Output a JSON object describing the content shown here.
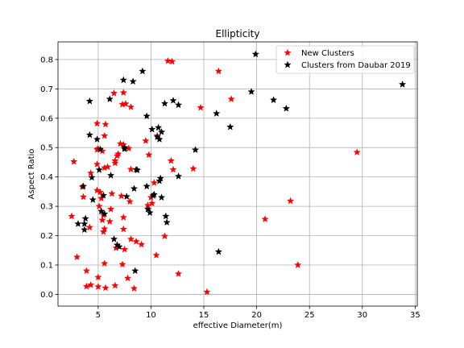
{
  "chart_data": {
    "type": "scatter",
    "title": "Ellipticity",
    "xlabel": "effective Diameter(m)",
    "ylabel": "Aspect Ratio",
    "xlim": [
      1.2,
      35.2
    ],
    "ylim": [
      -0.04,
      0.86
    ],
    "x_ticks": [
      5,
      10,
      15,
      20,
      25,
      30,
      35
    ],
    "y_ticks": [
      0.0,
      0.1,
      0.2,
      0.3,
      0.4,
      0.5,
      0.6,
      0.7,
      0.8
    ],
    "grid": true,
    "legend_position": "top-right",
    "marker": "star",
    "series": [
      {
        "name": "New Clusters",
        "color": "#ff0000",
        "points": [
          [
            11.6,
            0.795
          ],
          [
            12.0,
            0.793
          ],
          [
            16.4,
            0.76
          ],
          [
            6.5,
            0.685
          ],
          [
            7.4,
            0.687
          ],
          [
            17.6,
            0.665
          ],
          [
            7.3,
            0.647
          ],
          [
            7.6,
            0.649
          ],
          [
            8.1,
            0.638
          ],
          [
            14.7,
            0.636
          ],
          [
            4.9,
            0.582
          ],
          [
            5.7,
            0.579
          ],
          [
            5.6,
            0.54
          ],
          [
            10.6,
            0.54
          ],
          [
            9.5,
            0.523
          ],
          [
            7.1,
            0.513
          ],
          [
            7.4,
            0.51
          ],
          [
            5.0,
            0.496
          ],
          [
            4.9,
            0.493
          ],
          [
            7.9,
            0.497
          ],
          [
            5.4,
            0.488
          ],
          [
            6.9,
            0.478
          ],
          [
            6.8,
            0.472
          ],
          [
            9.8,
            0.475
          ],
          [
            29.5,
            0.484
          ],
          [
            6.6,
            0.455
          ],
          [
            11.9,
            0.455
          ],
          [
            6.6,
            0.447
          ],
          [
            2.7,
            0.452
          ],
          [
            4.9,
            0.443
          ],
          [
            5.6,
            0.431
          ],
          [
            5.9,
            0.434
          ],
          [
            8.1,
            0.426
          ],
          [
            12.1,
            0.425
          ],
          [
            14.0,
            0.428
          ],
          [
            4.3,
            0.413
          ],
          [
            10.3,
            0.38
          ],
          [
            3.5,
            0.366
          ],
          [
            6.3,
            0.343
          ],
          [
            4.9,
            0.354
          ],
          [
            5.2,
            0.348
          ],
          [
            7.2,
            0.335
          ],
          [
            3.6,
            0.332
          ],
          [
            5.3,
            0.327
          ],
          [
            10.0,
            0.33
          ],
          [
            10.1,
            0.31
          ],
          [
            9.7,
            0.303
          ],
          [
            8.0,
            0.316
          ],
          [
            23.2,
            0.318
          ],
          [
            6.2,
            0.29
          ],
          [
            5.1,
            0.3
          ],
          [
            5.5,
            0.27
          ],
          [
            7.4,
            0.262
          ],
          [
            2.5,
            0.266
          ],
          [
            20.8,
            0.256
          ],
          [
            5.4,
            0.253
          ],
          [
            6.1,
            0.248
          ],
          [
            4.2,
            0.228
          ],
          [
            5.6,
            0.223
          ],
          [
            7.4,
            0.222
          ],
          [
            5.5,
            0.213
          ],
          [
            11.3,
            0.198
          ],
          [
            8.1,
            0.188
          ],
          [
            8.6,
            0.18
          ],
          [
            9.1,
            0.17
          ],
          [
            6.7,
            0.158
          ],
          [
            7.5,
            0.153
          ],
          [
            3.0,
            0.127
          ],
          [
            10.5,
            0.133
          ],
          [
            5.6,
            0.105
          ],
          [
            7.3,
            0.102
          ],
          [
            23.9,
            0.1
          ],
          [
            3.9,
            0.08
          ],
          [
            12.6,
            0.07
          ],
          [
            5.0,
            0.058
          ],
          [
            7.8,
            0.055
          ],
          [
            4.3,
            0.032
          ],
          [
            6.6,
            0.03
          ],
          [
            3.9,
            0.027
          ],
          [
            5.0,
            0.026
          ],
          [
            5.7,
            0.022
          ],
          [
            8.4,
            0.02
          ],
          [
            15.3,
            0.008
          ]
        ]
      },
      {
        "name": "Clusters from Daubar 2019",
        "color": "#000000",
        "points": [
          [
            19.9,
            0.818
          ],
          [
            9.2,
            0.76
          ],
          [
            7.4,
            0.73
          ],
          [
            8.3,
            0.725
          ],
          [
            33.8,
            0.715
          ],
          [
            19.5,
            0.69
          ],
          [
            6.1,
            0.665
          ],
          [
            4.2,
            0.658
          ],
          [
            21.6,
            0.662
          ],
          [
            12.1,
            0.66
          ],
          [
            11.3,
            0.65
          ],
          [
            12.6,
            0.645
          ],
          [
            22.8,
            0.633
          ],
          [
            16.2,
            0.616
          ],
          [
            9.6,
            0.607
          ],
          [
            17.5,
            0.57
          ],
          [
            10.7,
            0.568
          ],
          [
            10.1,
            0.562
          ],
          [
            11.0,
            0.553
          ],
          [
            4.2,
            0.543
          ],
          [
            10.6,
            0.536
          ],
          [
            10.8,
            0.528
          ],
          [
            4.9,
            0.528
          ],
          [
            7.5,
            0.5
          ],
          [
            7.5,
            0.495
          ],
          [
            5.2,
            0.494
          ],
          [
            14.2,
            0.492
          ],
          [
            8.6,
            0.425
          ],
          [
            8.7,
            0.423
          ],
          [
            5.1,
            0.424
          ],
          [
            6.2,
            0.405
          ],
          [
            12.6,
            0.402
          ],
          [
            10.9,
            0.395
          ],
          [
            10.8,
            0.386
          ],
          [
            4.4,
            0.398
          ],
          [
            3.6,
            0.368
          ],
          [
            9.6,
            0.368
          ],
          [
            8.4,
            0.36
          ],
          [
            10.3,
            0.34
          ],
          [
            10.2,
            0.336
          ],
          [
            5.5,
            0.337
          ],
          [
            7.7,
            0.333
          ],
          [
            11.0,
            0.33
          ],
          [
            4.5,
            0.322
          ],
          [
            9.7,
            0.29
          ],
          [
            9.9,
            0.278
          ],
          [
            5.3,
            0.283
          ],
          [
            5.6,
            0.274
          ],
          [
            11.4,
            0.266
          ],
          [
            3.8,
            0.258
          ],
          [
            3.7,
            0.24
          ],
          [
            11.5,
            0.245
          ],
          [
            3.1,
            0.24
          ],
          [
            3.7,
            0.22
          ],
          [
            6.5,
            0.188
          ],
          [
            6.8,
            0.168
          ],
          [
            7.0,
            0.162
          ],
          [
            16.4,
            0.145
          ],
          [
            8.5,
            0.08
          ]
        ]
      }
    ]
  }
}
